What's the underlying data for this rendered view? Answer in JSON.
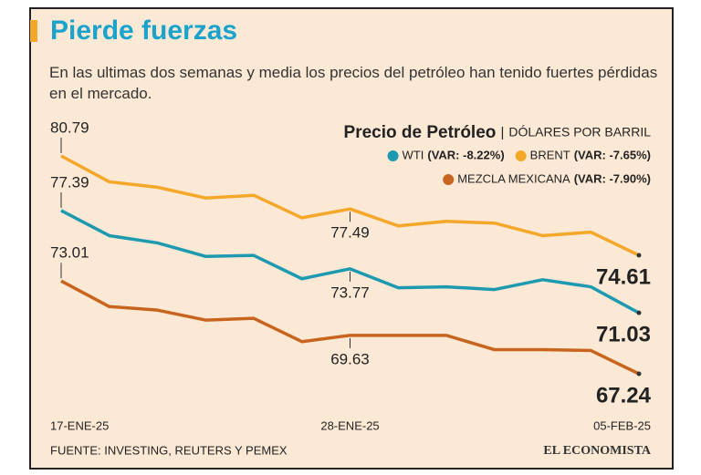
{
  "chart_data": {
    "type": "line",
    "title": "Pierde fuerzas",
    "subtitle": "En las ultimas dos semanas y media los precios del petróleo han tenido fuertes pérdidas en el mercado.",
    "legend_title": "Precio de Petróleo",
    "unit": "DÓLARES POR BARRIL",
    "source": "FUENTE: INVESTING, REUTERS Y PEMEX",
    "brand": "EL ECONOMISTA",
    "categories": [
      "17-ENE-25",
      null,
      null,
      null,
      null,
      null,
      "28-ENE-25",
      null,
      null,
      null,
      null,
      null,
      "05-FEB-25"
    ],
    "series": [
      {
        "name": "WTI",
        "variation": "(VAR: -8.22%)",
        "color": "#1e9ab0",
        "values": [
          77.39,
          75.83,
          75.38,
          74.54,
          74.6,
          73.15,
          73.77,
          72.59,
          72.65,
          72.48,
          73.09,
          72.65,
          71.03
        ]
      },
      {
        "name": "BRENT",
        "variation": "(VAR: -7.65%)",
        "color": "#f5a72a",
        "values": [
          80.79,
          79.18,
          78.84,
          78.17,
          78.34,
          76.94,
          77.49,
          76.44,
          76.72,
          76.61,
          75.83,
          76.05,
          74.61
        ]
      },
      {
        "name": "MEZCLA MEXICANA",
        "variation": "(VAR: -7.90%)",
        "color": "#c8641e",
        "values": [
          73.01,
          71.42,
          71.2,
          70.58,
          70.69,
          69.24,
          69.63,
          69.63,
          69.63,
          68.74,
          68.74,
          68.69,
          67.24
        ]
      }
    ]
  }
}
